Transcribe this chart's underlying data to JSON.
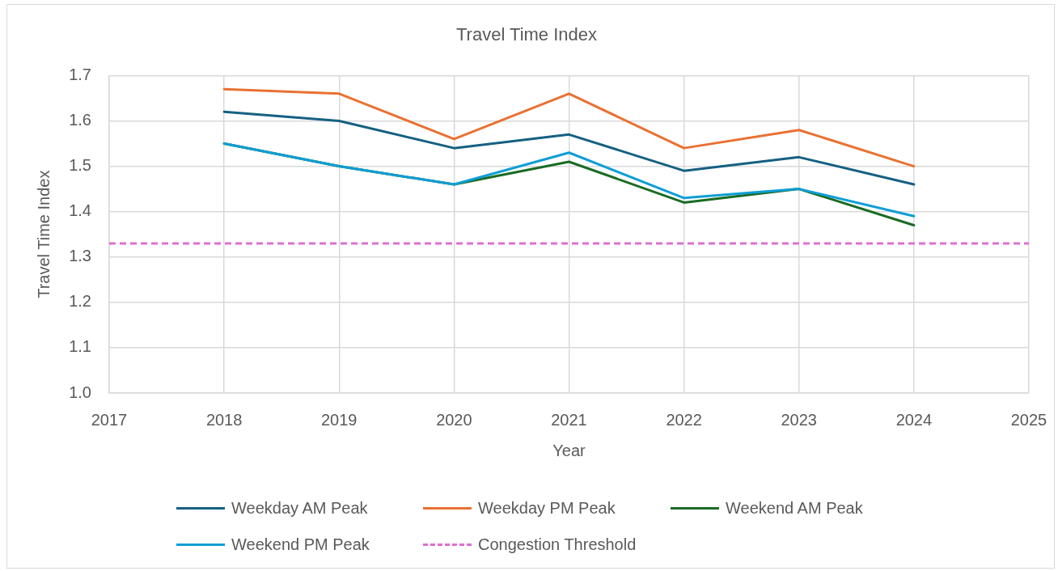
{
  "chart_data": {
    "type": "line",
    "title": "Travel Time Index",
    "xlabel": "Year",
    "ylabel": "Travel Time Index",
    "x": [
      2018,
      2019,
      2020,
      2021,
      2022,
      2023,
      2024
    ],
    "series": [
      {
        "name": "Weekday AM Peak",
        "color": "#156082",
        "values": [
          1.62,
          1.6,
          1.54,
          1.57,
          1.49,
          1.52,
          1.46
        ]
      },
      {
        "name": "Weekday PM Peak",
        "color": "#e97132",
        "values": [
          1.67,
          1.66,
          1.56,
          1.66,
          1.54,
          1.58,
          1.5
        ]
      },
      {
        "name": "Weekend AM Peak",
        "color": "#196b24",
        "values": [
          1.55,
          1.5,
          1.46,
          1.51,
          1.42,
          1.45,
          1.37
        ]
      },
      {
        "name": "Weekend PM Peak",
        "color": "#0f9ed5",
        "values": [
          1.55,
          1.5,
          1.46,
          1.53,
          1.43,
          1.45,
          1.39
        ]
      }
    ],
    "ref_lines": [
      {
        "axis": "y",
        "value": 1.33,
        "label": "Congestion Threshold",
        "color": "#dd6fd0",
        "line_style": "dashed"
      }
    ],
    "xlim": [
      2017,
      2025
    ],
    "xticks": [
      2017,
      2018,
      2019,
      2020,
      2021,
      2022,
      2023,
      2024,
      2025
    ],
    "ylim": [
      1.0,
      1.7
    ],
    "yticks": [
      {
        "value": 1.0,
        "label": "1.0"
      },
      1.1,
      1.2,
      1.3,
      1.4,
      1.5,
      1.6,
      1.7
    ],
    "grid": true,
    "legend": "bottom",
    "marker": "none"
  }
}
